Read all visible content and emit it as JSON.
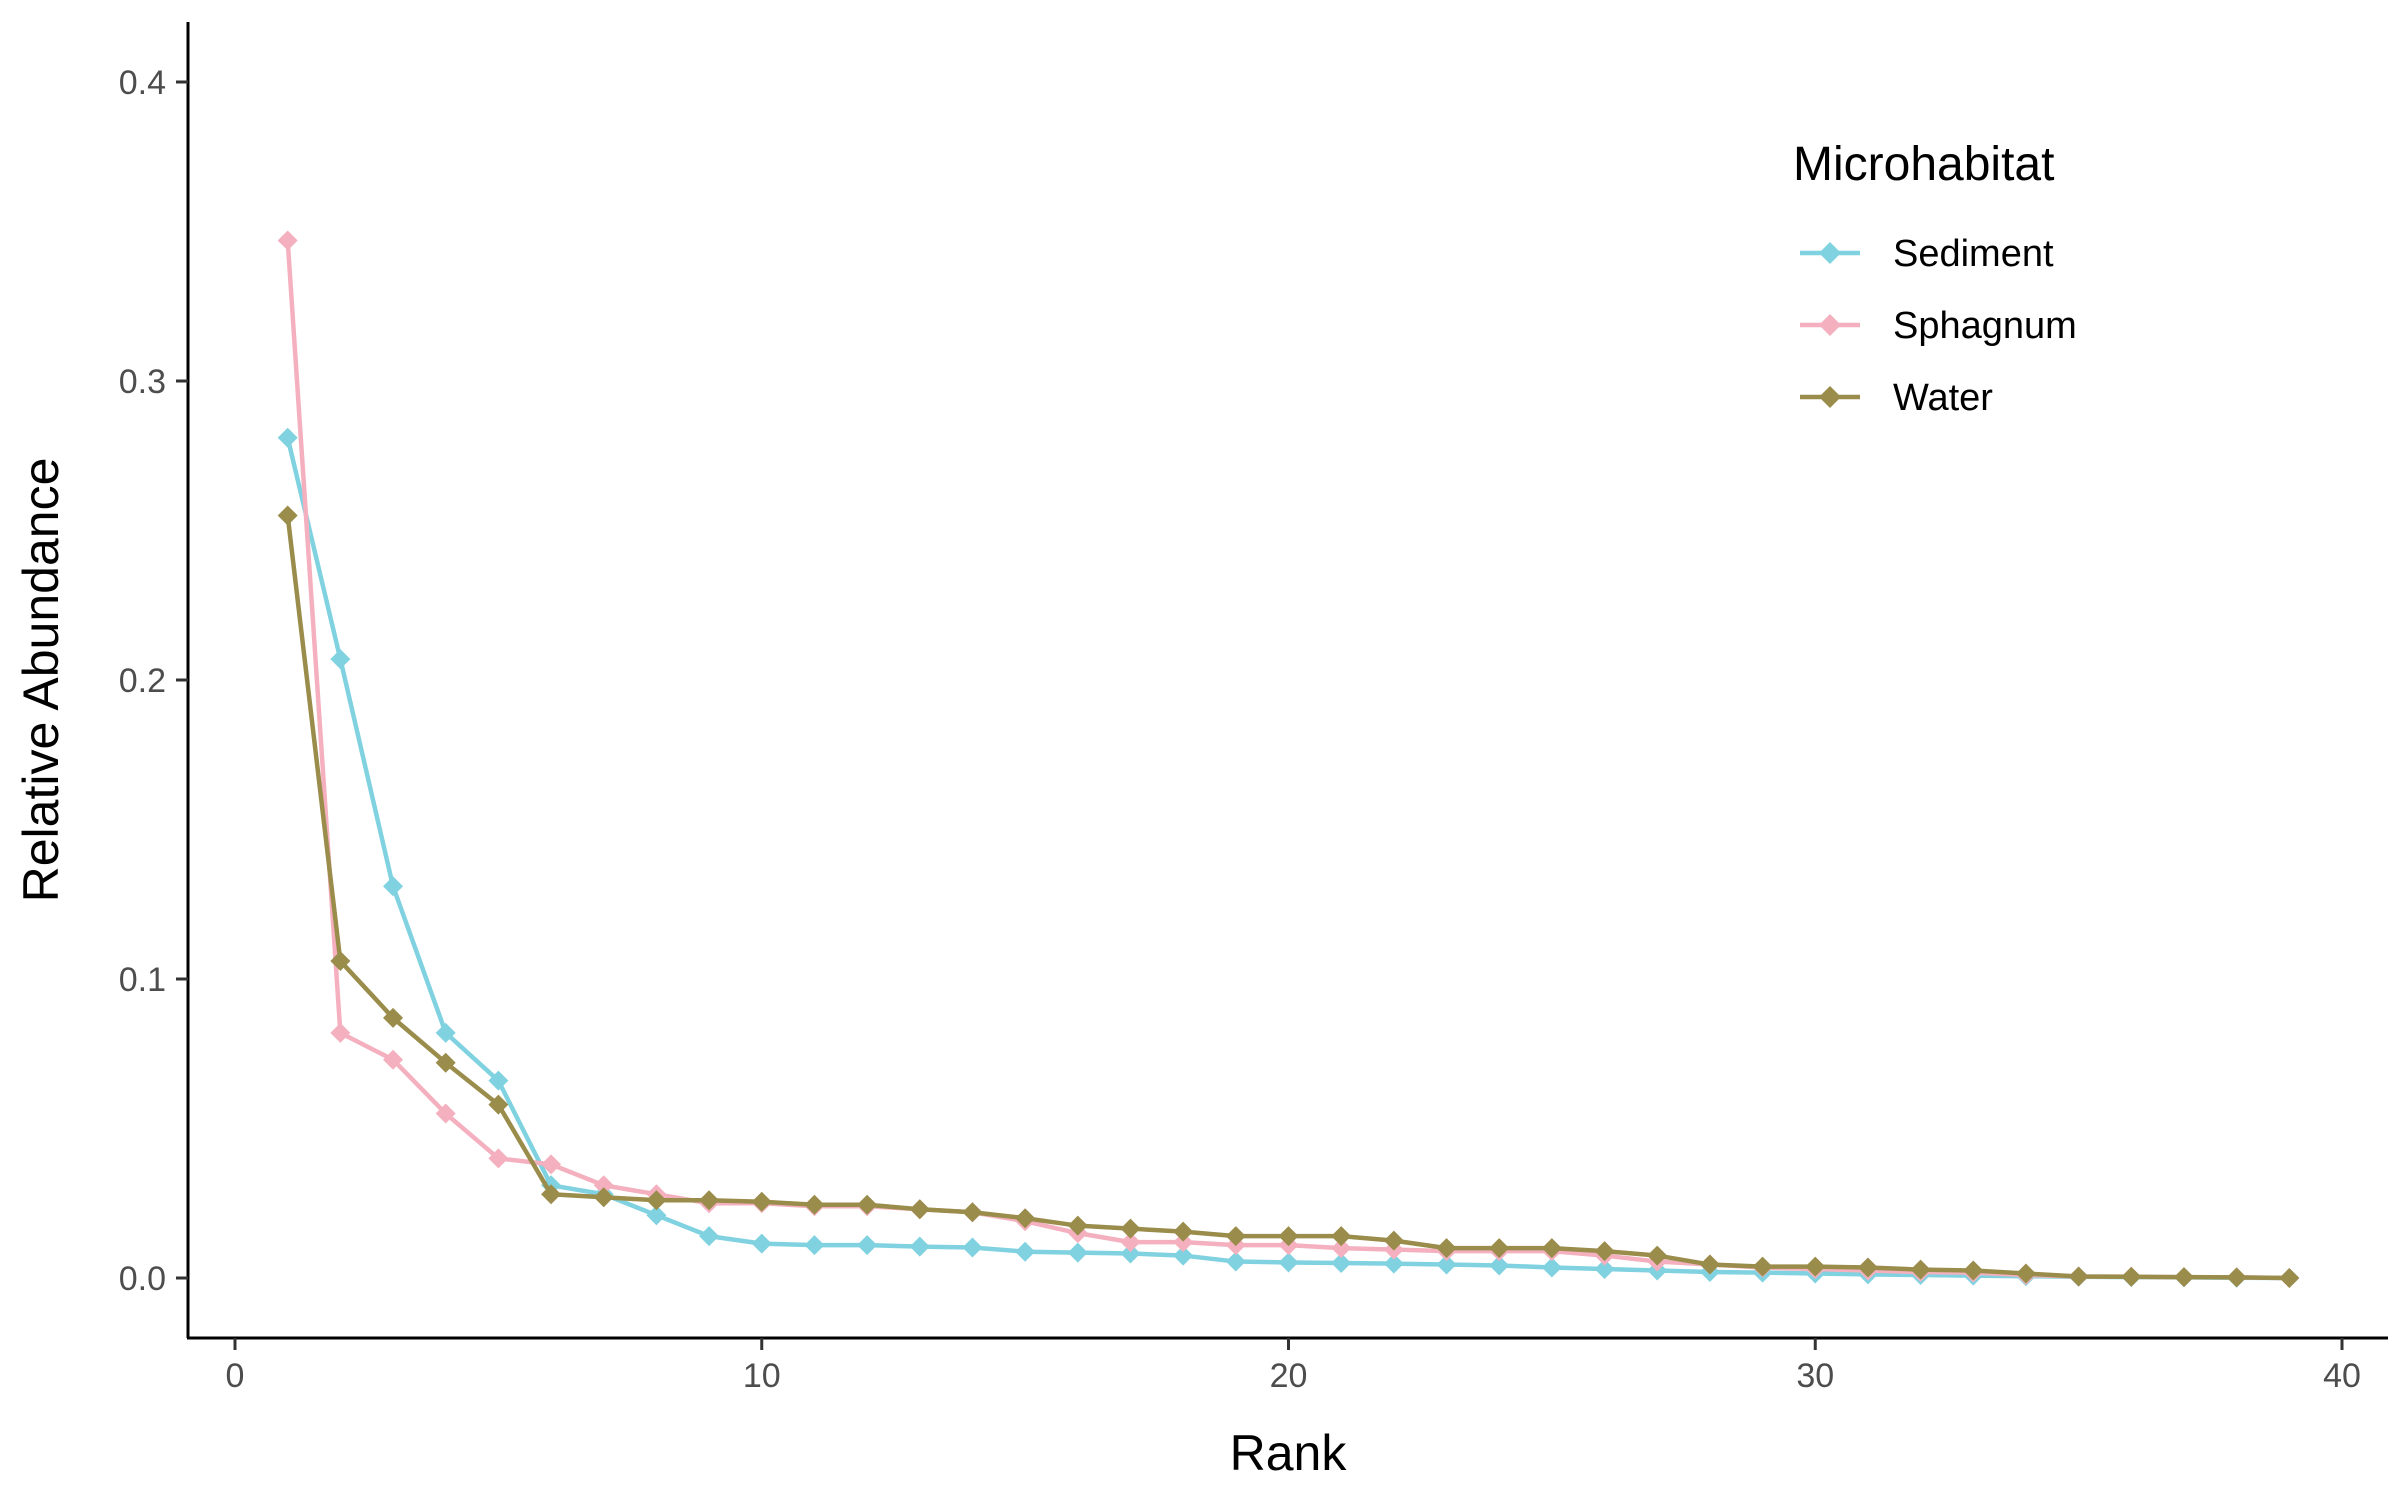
{
  "chart_data": {
    "type": "line",
    "xlabel": "Rank",
    "ylabel": "Relative Abundance",
    "xlim": [
      0,
      40
    ],
    "ylim": [
      0,
      0.4
    ],
    "x_ticks": [
      0,
      10,
      20,
      30,
      40
    ],
    "y_ticks": [
      0.0,
      0.1,
      0.2,
      0.3,
      0.4
    ],
    "x_tick_labels": [
      "0",
      "10",
      "20",
      "30",
      "40"
    ],
    "y_tick_labels": [
      "0.0",
      "0.1",
      "0.2",
      "0.3",
      "0.4"
    ],
    "grid": false,
    "legend": {
      "title": "Microhabitat",
      "position": "top-right"
    },
    "x": [
      1,
      2,
      3,
      4,
      5,
      6,
      7,
      8,
      9,
      10,
      11,
      12,
      13,
      14,
      15,
      16,
      17,
      18,
      19,
      20,
      21,
      22,
      23,
      24,
      25,
      26,
      27,
      28,
      29,
      30,
      31,
      32,
      33,
      34,
      35,
      36,
      37,
      38,
      39
    ],
    "series": [
      {
        "name": "Sediment",
        "color": "#80d2e0",
        "values": [
          0.281,
          0.207,
          0.131,
          0.082,
          0.066,
          0.031,
          0.028,
          0.021,
          0.014,
          0.0115,
          0.011,
          0.011,
          0.0105,
          0.0102,
          0.0088,
          0.0085,
          0.0082,
          0.0075,
          0.0055,
          0.0052,
          0.005,
          0.0048,
          0.0045,
          0.0042,
          0.0035,
          0.003,
          0.0025,
          0.002,
          0.0018,
          0.0015,
          0.0012,
          0.001,
          0.0008,
          0.0006,
          0.0004,
          0.0003,
          0.0002,
          0.0001,
          0.0
        ]
      },
      {
        "name": "Sphagnum",
        "color": "#f4b0be",
        "values": [
          0.347,
          0.082,
          0.073,
          0.055,
          0.04,
          0.038,
          0.031,
          0.028,
          0.025,
          0.025,
          0.024,
          0.024,
          0.023,
          0.022,
          0.019,
          0.015,
          0.012,
          0.012,
          0.011,
          0.011,
          0.01,
          0.0095,
          0.009,
          0.009,
          0.009,
          0.0075,
          0.0055,
          0.0045,
          0.0035,
          0.003,
          0.0025,
          0.002,
          0.0018,
          0.001,
          0.0005,
          0.0004,
          0.0003,
          0.0002,
          0.0
        ]
      },
      {
        "name": "Water",
        "color": "#9a8c4a",
        "values": [
          0.255,
          0.106,
          0.087,
          0.072,
          0.058,
          0.028,
          0.027,
          0.026,
          0.026,
          0.0255,
          0.0245,
          0.0245,
          0.023,
          0.022,
          0.02,
          0.0175,
          0.0165,
          0.0155,
          0.014,
          0.014,
          0.014,
          0.0125,
          0.01,
          0.01,
          0.01,
          0.009,
          0.0075,
          0.0045,
          0.0038,
          0.0038,
          0.0035,
          0.0028,
          0.0025,
          0.0015,
          0.0005,
          0.0004,
          0.0003,
          0.0002,
          0.0
        ]
      }
    ]
  }
}
